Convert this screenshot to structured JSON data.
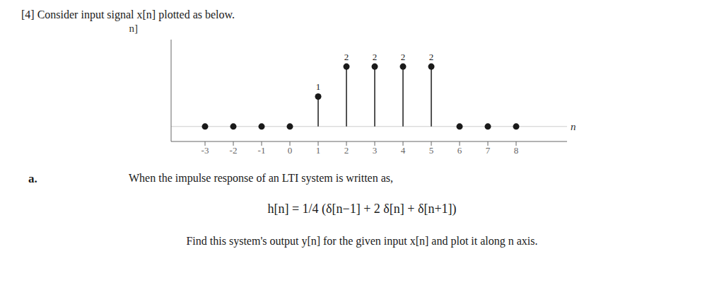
{
  "chart_data": {
    "type": "stem",
    "title": "[4] Consider input signal x[n] plotted as below.",
    "x_label": "n",
    "y_label": "x[n]",
    "x": [
      -3,
      -2,
      -1,
      0,
      1,
      2,
      3,
      4,
      5,
      6,
      7,
      8
    ],
    "values": [
      0,
      0,
      0,
      0,
      1,
      2,
      2,
      2,
      2,
      0,
      0,
      0
    ],
    "value_labels": [
      null,
      null,
      null,
      null,
      "1",
      "2",
      "2",
      "2",
      "2",
      null,
      null,
      null
    ],
    "data_labels": true,
    "color": "#1a1a1a",
    "xlim": [
      -4.2,
      9.8
    ],
    "xticks": [
      -3,
      -2,
      -1,
      0,
      1,
      2,
      3,
      4,
      5,
      6,
      7,
      8
    ],
    "ylim": [
      -0.5,
      2.9
    ],
    "tick_labels": "x",
    "grid": false,
    "annotations": [
      "a.",
      "When the impulse response of an LTI system is written as,",
      "h[n] = 1/4 (δ[n−1] + 2 δ[n] + δ[n+1])",
      "Find this system's output y[n] for the given input x[n] and plot it along n axis."
    ]
  }
}
